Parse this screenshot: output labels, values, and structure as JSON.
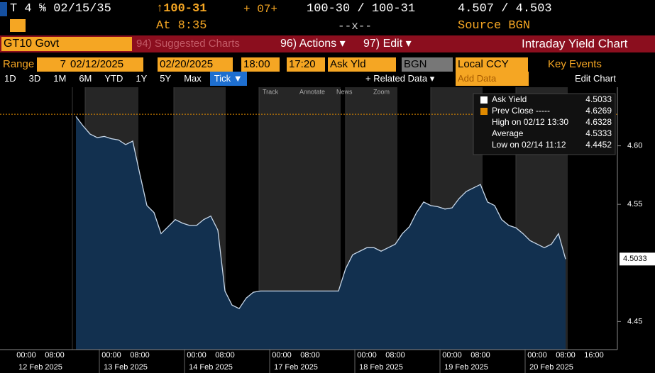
{
  "header": {
    "ticker": "T 4 ⅝ 02/15/35",
    "price": "↑100-31",
    "change": "+ 07+",
    "bid_ask_price": "100-30 / 100-31",
    "bid_ask_yield": "4.507 / 4.503",
    "time": "At 8:35",
    "size": "--x--",
    "source": "Source BGN"
  },
  "menu": {
    "security": "GT10 Govt",
    "suggested": "94) Suggested Charts",
    "actions": "96) Actions ▾",
    "edit": "97) Edit ▾",
    "title": "Intraday Yield Chart"
  },
  "range": {
    "label": "Range",
    "period": "7",
    "start_date": "02/12/2025",
    "end_date": "02/20/2025",
    "start_time": "18:00",
    "end_time": "17:20",
    "field": "Ask Yld",
    "source": "BGN",
    "currency": "Local CCY",
    "key_events": "Key Events"
  },
  "toolbar": {
    "periods": [
      "1D",
      "3D",
      "1M",
      "6M",
      "YTD",
      "1Y",
      "5Y",
      "Max",
      "Tick ▼"
    ],
    "related": "+ Related Data ▾",
    "add_data": "Add Data",
    "edit_chart": "Edit Chart",
    "tools": [
      "Track",
      "Annotate",
      "News",
      "Zoom"
    ]
  },
  "chart_data": {
    "type": "area",
    "series_name": "Ask Yield",
    "color": "#12304f",
    "line_color": "#c8d8ea",
    "days": [
      {
        "date": "12 Feb 2025",
        "time_labels": [
          "00:00",
          "08:00"
        ],
        "values": [
          null,
          null,
          null,
          null,
          null,
          null,
          null,
          4.625,
          4.617,
          4.61,
          4.607,
          4.608
        ]
      },
      {
        "date": "13 Feb 2025",
        "time_labels": [
          "00:00",
          "08:00"
        ],
        "values": [
          4.606,
          4.605,
          4.601,
          4.604,
          4.576,
          4.549,
          4.543,
          4.525,
          4.531,
          4.537,
          4.534,
          4.532
        ]
      },
      {
        "date": "14 Feb 2025",
        "time_labels": [
          "00:00",
          "08:00"
        ],
        "values": [
          4.532,
          4.537,
          4.54,
          4.528,
          4.476,
          4.464,
          4.461,
          4.47,
          4.475,
          4.476,
          4.476,
          4.476
        ]
      },
      {
        "date": "17 Feb 2025",
        "time_labels": [
          "00:00",
          "08:00"
        ],
        "values": [
          4.476,
          4.476,
          4.476,
          4.476,
          4.476,
          4.476,
          4.476,
          4.476,
          4.476,
          4.495,
          4.507,
          4.51
        ]
      },
      {
        "date": "18 Feb 2025",
        "time_labels": [
          "00:00",
          "08:00"
        ],
        "values": [
          4.513,
          4.513,
          4.51,
          4.513,
          4.516,
          4.525,
          4.531,
          4.543,
          4.552,
          4.549,
          4.548,
          4.546
        ]
      },
      {
        "date": "19 Feb 2025",
        "time_labels": [
          "00:00",
          "08:00"
        ],
        "values": [
          4.547,
          4.555,
          4.561,
          4.564,
          4.567,
          4.552,
          4.549,
          4.537,
          4.532,
          4.53,
          4.525,
          4.519
        ]
      },
      {
        "date": "20 Feb 2025",
        "time_labels": [
          "00:00",
          "08:00",
          "16:00"
        ],
        "values": [
          4.516,
          4.513,
          4.516,
          4.525,
          4.5033,
          null,
          null,
          null,
          null,
          null,
          null,
          null
        ]
      }
    ],
    "ylim": [
      4.426,
      4.65
    ],
    "yticks": [
      4.45,
      4.55,
      {
        "value": 4.6,
        "label": "4.60"
      }
    ],
    "legend": [
      {
        "label": "Ask Yield",
        "value": "4.5033"
      },
      {
        "label": "Prev Close -----",
        "value": "4.6269"
      },
      {
        "label": "High on 02/12 13:30",
        "value": "4.6328"
      },
      {
        "label": "Average",
        "value": "4.5333"
      },
      {
        "label": "Low on 02/14 11:12",
        "value": "4.4452"
      }
    ],
    "prev_close": 4.6269,
    "prev_close_color": "#e08a00",
    "last_value": "4.5033"
  }
}
